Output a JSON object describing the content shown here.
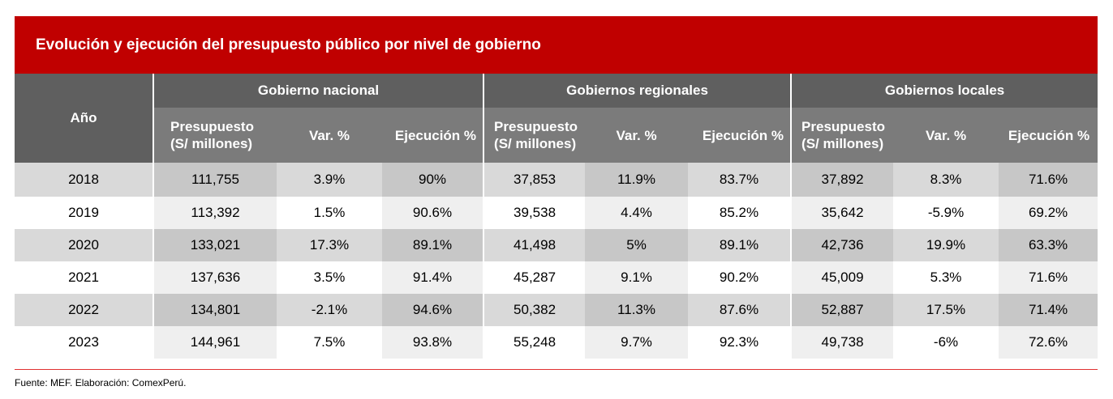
{
  "title": "Evolución y ejecución del presupuesto público por nivel de gobierno",
  "header": {
    "year_label": "Año",
    "groups": [
      "Gobierno nacional",
      "Gobiernos regionales",
      "Gobiernos locales"
    ],
    "sub": {
      "presupuesto_l1": "Presupuesto",
      "presupuesto_l2": "(S/ millones)",
      "var": "Var. %",
      "ejecucion": "Ejecución %"
    }
  },
  "rows": [
    {
      "year": "2018",
      "nacional": [
        "111,755",
        "3.9%",
        "90%"
      ],
      "regional": [
        "37,853",
        "11.9%",
        "83.7%"
      ],
      "local": [
        "37,892",
        "8.3%",
        "71.6%"
      ]
    },
    {
      "year": "2019",
      "nacional": [
        "113,392",
        "1.5%",
        "90.6%"
      ],
      "regional": [
        "39,538",
        "4.4%",
        "85.2%"
      ],
      "local": [
        "35,642",
        "-5.9%",
        "69.2%"
      ]
    },
    {
      "year": "2020",
      "nacional": [
        "133,021",
        "17.3%",
        "89.1%"
      ],
      "regional": [
        "41,498",
        "5%",
        "89.1%"
      ],
      "local": [
        "42,736",
        "19.9%",
        "63.3%"
      ]
    },
    {
      "year": "2021",
      "nacional": [
        "137,636",
        "3.5%",
        "91.4%"
      ],
      "regional": [
        "45,287",
        "9.1%",
        "90.2%"
      ],
      "local": [
        "45,009",
        "5.3%",
        "71.6%"
      ]
    },
    {
      "year": "2022",
      "nacional": [
        "134,801",
        "-2.1%",
        "94.6%"
      ],
      "regional": [
        "50,382",
        "11.3%",
        "87.6%"
      ],
      "local": [
        "52,887",
        "17.5%",
        "71.4%"
      ]
    },
    {
      "year": "2023",
      "nacional": [
        "144,961",
        "7.5%",
        "93.8%"
      ],
      "regional": [
        "55,248",
        "9.7%",
        "92.3%"
      ],
      "local": [
        "49,738",
        "-6%",
        "72.6%"
      ]
    }
  ],
  "source": "Fuente: MEF. Elaboración: ComexPerú.",
  "colors": {
    "title_bg": "#c00000",
    "header_dark": "#5f5f5f",
    "header_light": "#7b7b7b",
    "row_shaded": "#d9d9d9",
    "row_shaded_dark_col": "#c7c7c7",
    "row_plain_dark_col": "#efefef",
    "rule": "#e03030"
  }
}
